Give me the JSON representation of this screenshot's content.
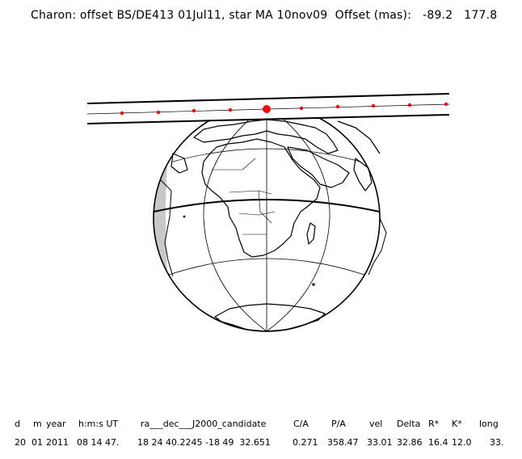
{
  "title": "Charon: offset BS/DE413 01Jul11, star MA 10nov09  Offset (mas):   -89.2   177.8",
  "table": {
    "headers": [
      "d",
      "m",
      "year",
      "h:m:s UT",
      "ra___dec___J2000_candidate",
      "C/A",
      "P/A",
      "vel",
      "Delta",
      "R*",
      "K*",
      "long"
    ],
    "values": [
      "20",
      "01",
      "2011",
      "08 14 47.",
      "18 24 40.2245 -18 49  32.651",
      "0.271",
      "358.47",
      "33.01",
      "32.86",
      "16.4",
      "12.0",
      "33."
    ]
  },
  "colors": {
    "ink": "#000000",
    "ocean": "#ffffff",
    "night": "#c8c8c8",
    "track_points": "#ff0000"
  },
  "map": {
    "projection": "orthographic",
    "center_lon": 20,
    "center_lat": 0,
    "graticule_lon_step": 90,
    "graticule_lat_step": 30
  }
}
